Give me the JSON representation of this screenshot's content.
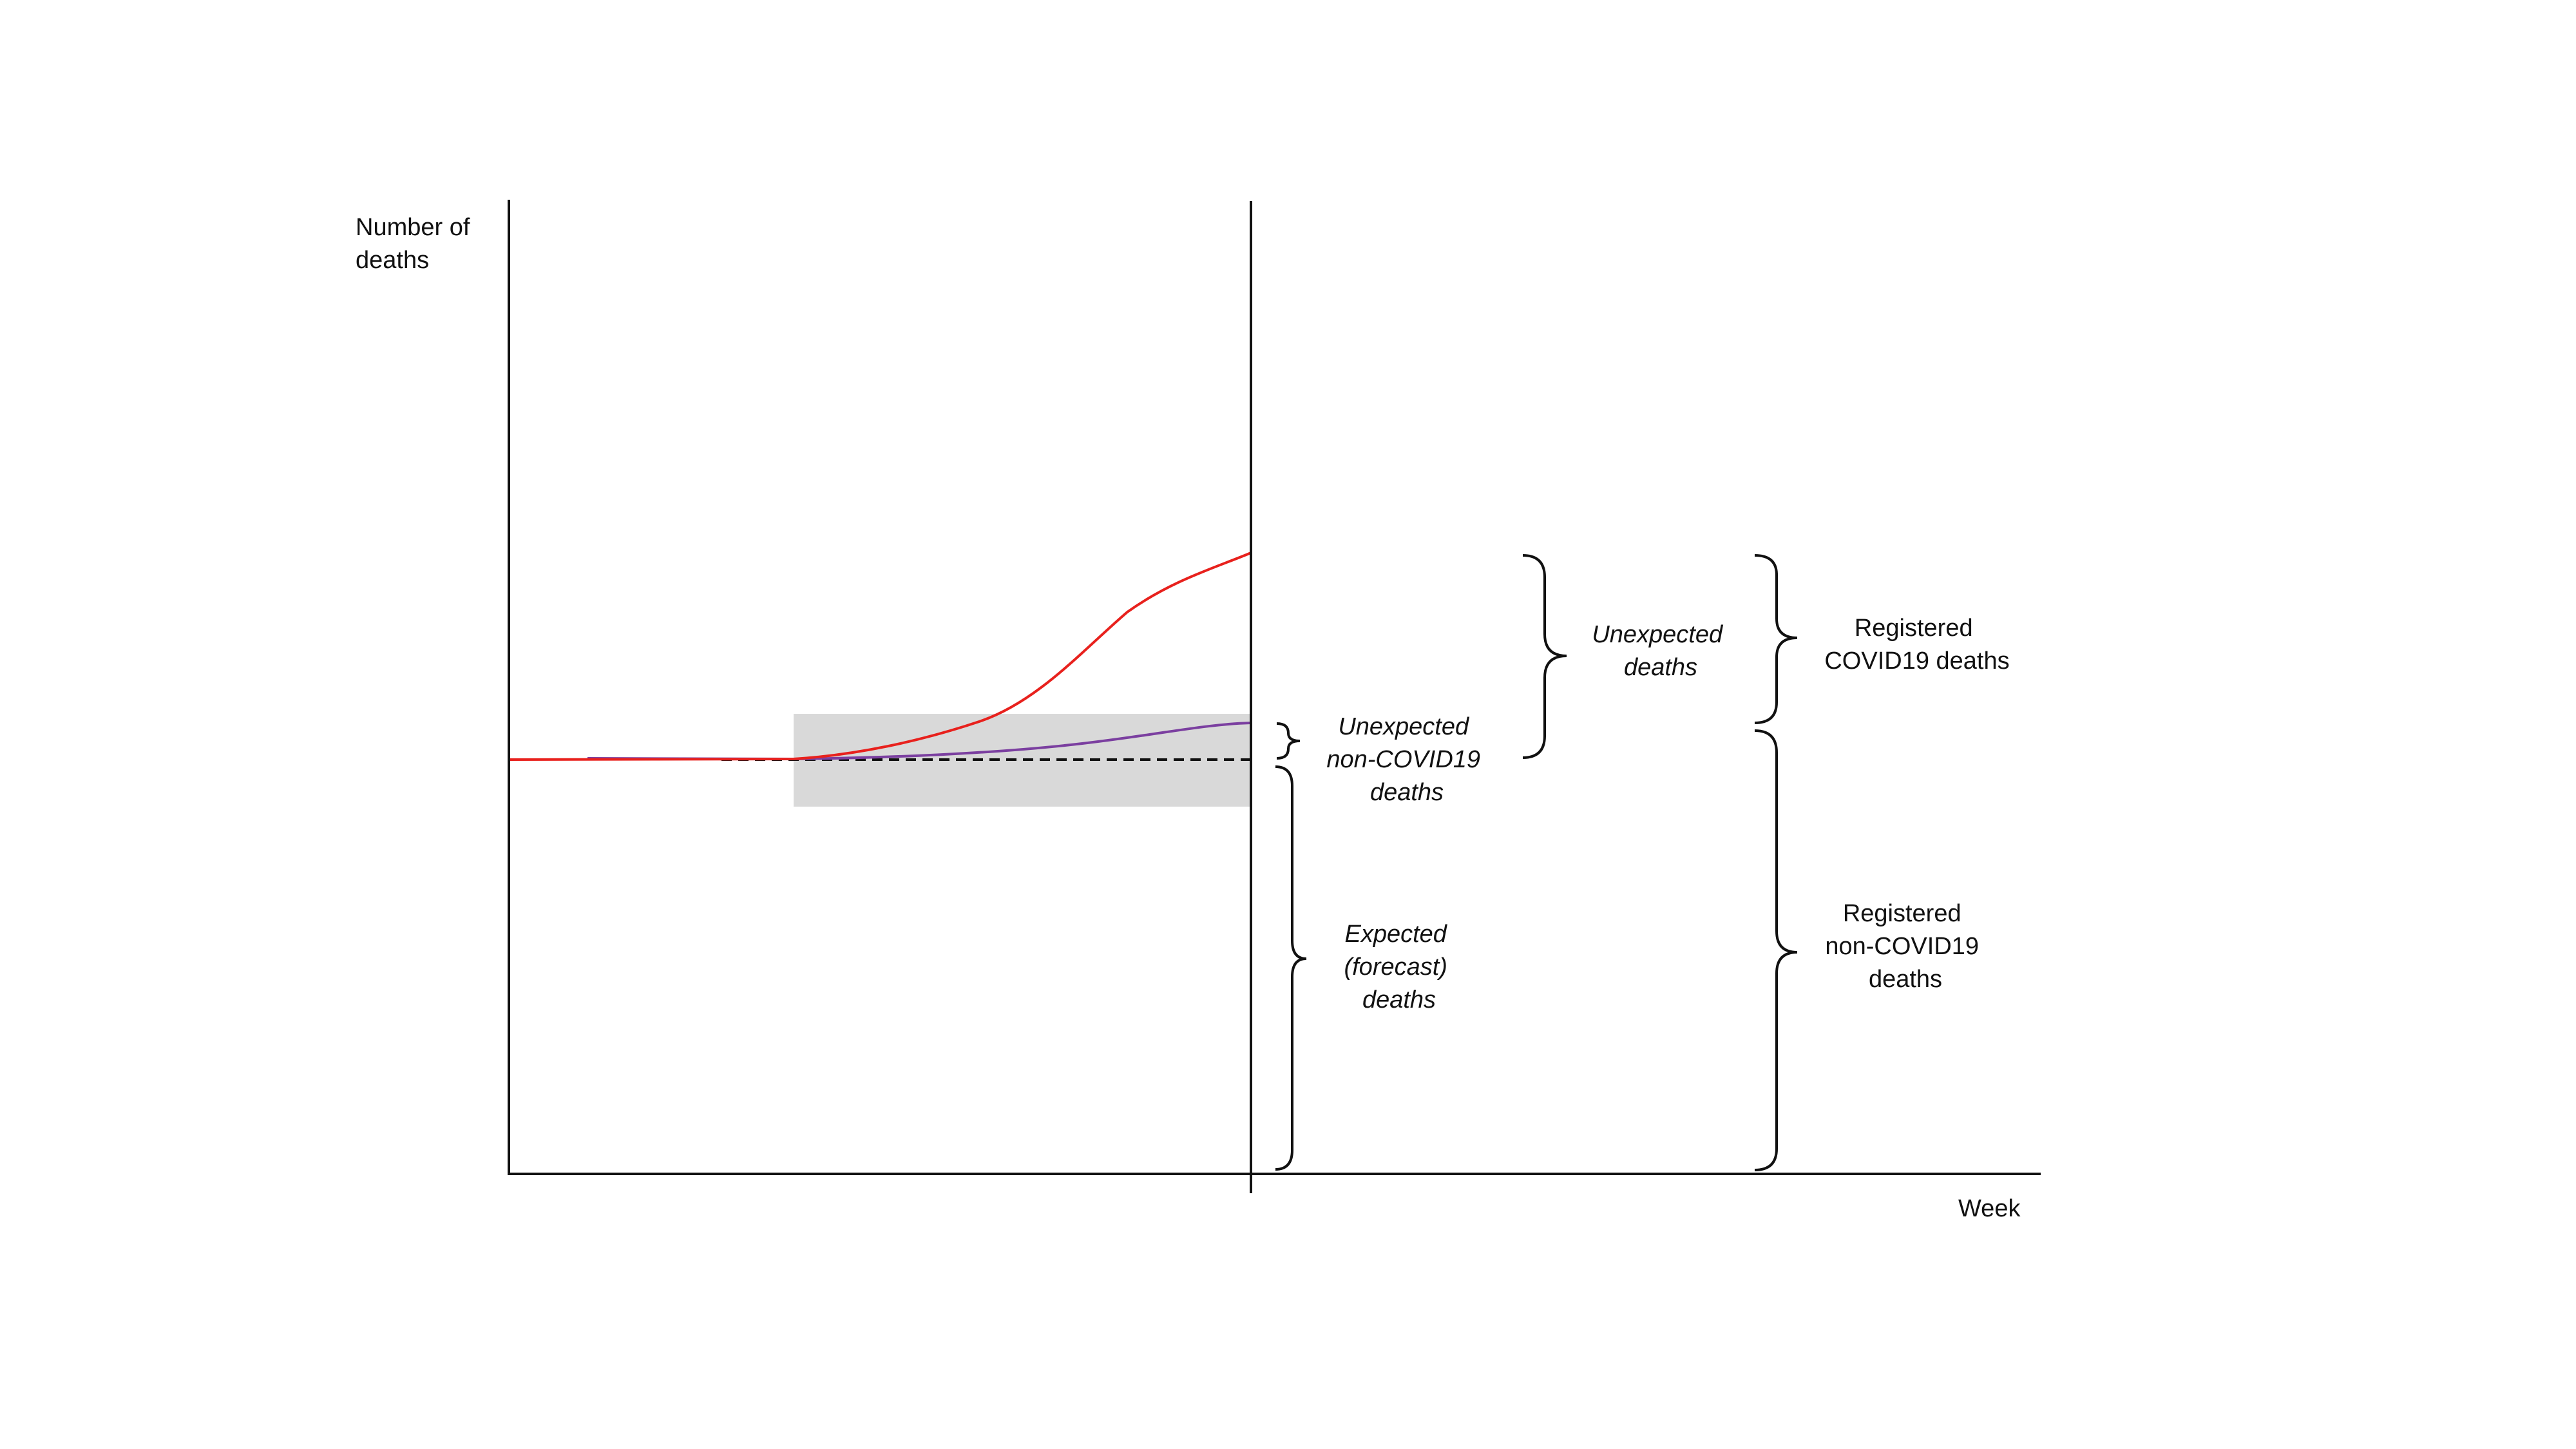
{
  "axes": {
    "y_label": [
      "Number of",
      "deaths"
    ],
    "x_label": "Week"
  },
  "annotations": {
    "unexpected_non_covid": [
      "Unexpected",
      "non-COVID19",
      "deaths"
    ],
    "expected_forecast": [
      "Expected",
      "(forecast)",
      "deaths"
    ],
    "unexpected_deaths": [
      "Unexpected",
      "deaths"
    ],
    "registered_covid": [
      "Registered",
      "COVID19 deaths"
    ],
    "registered_non_covid": [
      "Registered",
      "non-COVID19",
      "deaths"
    ]
  },
  "colors": {
    "registered_deaths_line": "#e8211d",
    "non_covid_line": "#7b3fa0",
    "expected_line": "#111111",
    "forecast_band": "#d9d9d9",
    "axes": "#111111"
  }
}
